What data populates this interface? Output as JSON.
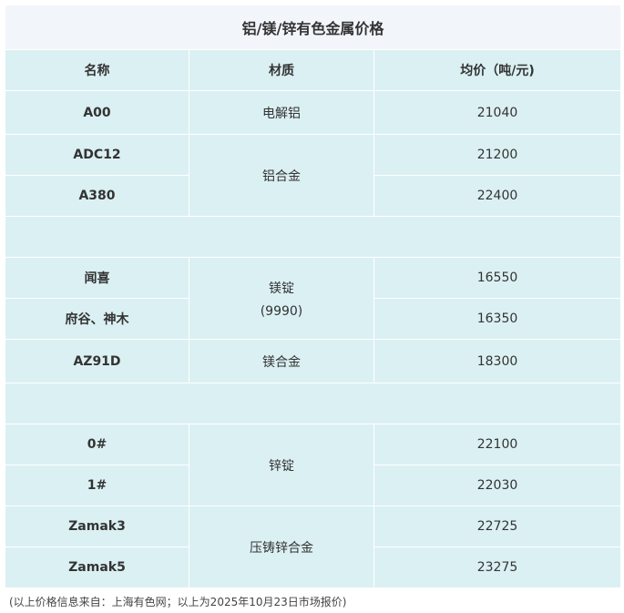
{
  "title": "铝/镁/锌有色金属价格",
  "headers": [
    "名称",
    "材质",
    "均价（吨/元)"
  ],
  "rows": {
    "a00": {
      "name": "A00",
      "material": "电解铝",
      "price": "21040"
    },
    "adc12": {
      "name": "ADC12",
      "material": "铝合金",
      "price": "21200"
    },
    "a380": {
      "name": "A380",
      "price": "22400"
    },
    "wenxi": {
      "name": "闻喜",
      "material": "镁锭",
      "material2": "(9990)",
      "price": "16550"
    },
    "fugu": {
      "name": "府谷、神木",
      "price": "16350"
    },
    "az91d": {
      "name": "AZ91D",
      "material": "镁合金",
      "price": "18300"
    },
    "zero": {
      "name": "0#",
      "material": "锌锭",
      "price": "22100"
    },
    "one": {
      "name": "1#",
      "price": "22030"
    },
    "zamak3": {
      "name": "Zamak3",
      "material": "压铸锌合金",
      "price": "22725"
    },
    "zamak5": {
      "name": "Zamak5",
      "price": "23275"
    }
  },
  "footer": "(以上价格信息来自：上海有色网；以上为2025年10月23日市场报价)"
}
